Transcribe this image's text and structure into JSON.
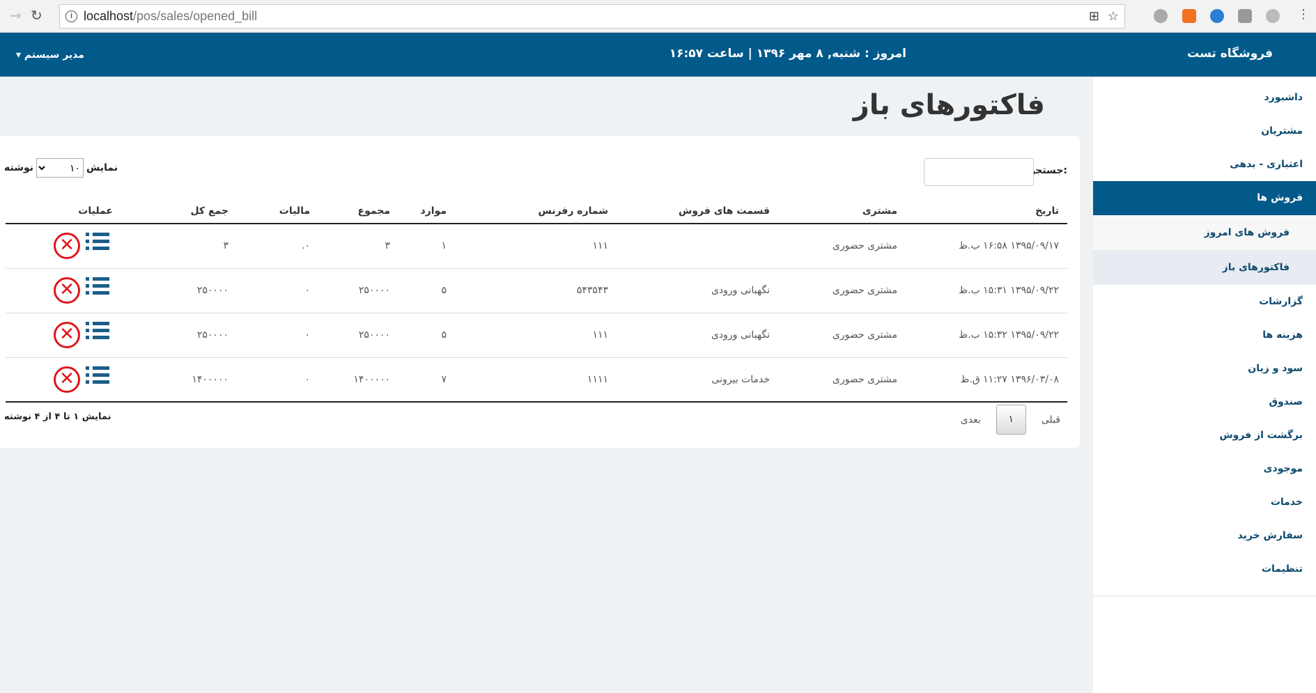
{
  "browser": {
    "url_host": "localhost",
    "url_path": "/pos/sales/opened_bill"
  },
  "header": {
    "brand": "فروشگاه تست",
    "today": "امروز : شنبه, ۸ مهر ۱۳۹۶ | ساعت ۱۶:۵۷",
    "user": "مدیر سیستم"
  },
  "sidebar": {
    "items": [
      {
        "label": "داشبورد"
      },
      {
        "label": "مشتریان"
      },
      {
        "label": "اعتباری - بدهی"
      },
      {
        "label": "فروش ها"
      },
      {
        "label": "فروش های امروز"
      },
      {
        "label": "فاکتورهای باز"
      },
      {
        "label": "گزارشات"
      },
      {
        "label": "هزینه ها"
      },
      {
        "label": "سود و زیان"
      },
      {
        "label": "صندوق"
      },
      {
        "label": "برگشت از فروش"
      },
      {
        "label": "موجودی"
      },
      {
        "label": "خدمات"
      },
      {
        "label": "سفارش خرید"
      },
      {
        "label": "تنظیمات"
      }
    ]
  },
  "page": {
    "title": "فاکتورهای باز",
    "search_label": "جستجو:",
    "search_value": "",
    "length_show": "نمایش",
    "length_value": "۱۰",
    "length_suffix": "نوشته"
  },
  "table": {
    "headers": [
      "تاریخ",
      "مشتری",
      "قسمت های فروش",
      "شماره رفرنس",
      "موارد",
      "مجموع",
      "مالیات",
      "جمع کل",
      "عملیات"
    ],
    "rows": [
      [
        "۱۳۹۵/۰۹/۱۷ ۱۶:۵۸ ب.ظ",
        "مشتری حضوری",
        "",
        "۱۱۱",
        "۱",
        "۳",
        "۰.",
        "۳"
      ],
      [
        "۱۳۹۵/۰۹/۲۲ ۱۵:۳۱ ب.ظ",
        "مشتری حضوری",
        "نگهبانی ورودی",
        "۵۴۳۵۴۳",
        "۵",
        "۲۵۰۰۰۰",
        "۰",
        "۲۵۰۰۰۰"
      ],
      [
        "۱۳۹۵/۰۹/۲۲ ۱۵:۳۲ ب.ظ",
        "مشتری حضوری",
        "نگهبانی ورودی",
        "۱۱۱",
        "۵",
        "۲۵۰۰۰۰",
        "۰",
        "۲۵۰۰۰۰"
      ],
      [
        "۱۳۹۶/۰۳/۰۸ ۱۱:۲۷ ق.ظ",
        "مشتری حضوری",
        "خدمات بیرونی",
        "۱۱۱۱",
        "۷",
        "۱۴۰۰۰۰۰",
        "۰",
        "۱۴۰۰۰۰۰"
      ]
    ]
  },
  "footer": {
    "info": "نمایش ۱ تا ۴ از ۴ نوشته",
    "prev": "قبلی",
    "page": "۱",
    "next": "بعدی"
  },
  "colors": {
    "brand": "#025a8b",
    "delete": "#e0151a",
    "icon": "#1a5d8a"
  }
}
